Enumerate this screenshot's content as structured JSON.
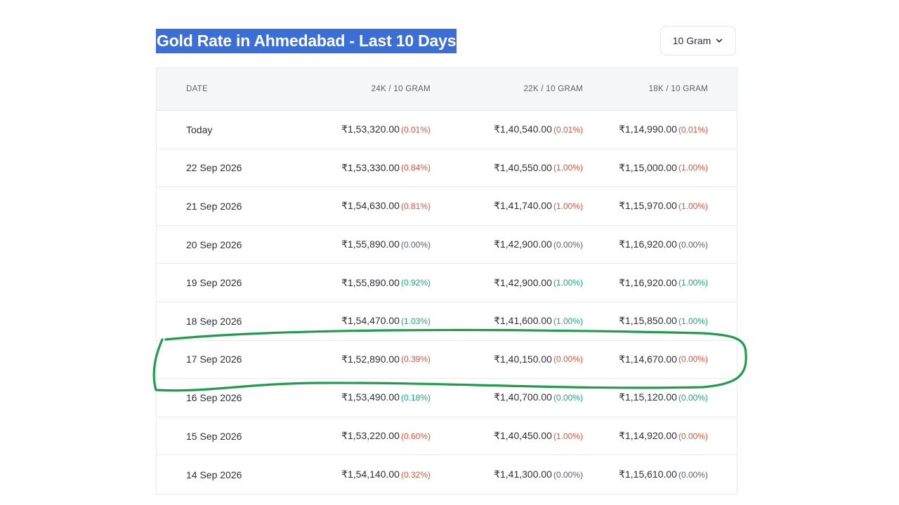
{
  "title": "Gold Rate in Ahmedabad - Last 10 Days",
  "unit_select": {
    "value": "10 Gram"
  },
  "table": {
    "headers": [
      "DATE",
      "24K / 10 GRAM",
      "22K / 10 GRAM",
      "18K / 10 GRAM"
    ],
    "rows": [
      {
        "date": "Today",
        "k24": {
          "price": "₹1,53,320.00",
          "change": "(0.01%)",
          "trend": "down"
        },
        "k22": {
          "price": "₹1,40,540.00",
          "change": "(0.01%)",
          "trend": "down"
        },
        "k18": {
          "price": "₹1,14,990.00",
          "change": "(0.01%)",
          "trend": "down"
        }
      },
      {
        "date": "22 Sep 2026",
        "k24": {
          "price": "₹1,53,330.00",
          "change": "(0.84%)",
          "trend": "down"
        },
        "k22": {
          "price": "₹1,40,550.00",
          "change": "(1.00%)",
          "trend": "down"
        },
        "k18": {
          "price": "₹1,15,000.00",
          "change": "(1.00%)",
          "trend": "down"
        }
      },
      {
        "date": "21 Sep 2026",
        "k24": {
          "price": "₹1,54,630.00",
          "change": "(0.81%)",
          "trend": "down"
        },
        "k22": {
          "price": "₹1,41,740.00",
          "change": "(1.00%)",
          "trend": "down"
        },
        "k18": {
          "price": "₹1,15,970.00",
          "change": "(1.00%)",
          "trend": "down"
        }
      },
      {
        "date": "20 Sep 2026",
        "k24": {
          "price": "₹1,55,890.00",
          "change": "(0.00%)",
          "trend": "flat"
        },
        "k22": {
          "price": "₹1,42,900.00",
          "change": "(0.00%)",
          "trend": "flat"
        },
        "k18": {
          "price": "₹1,16,920.00",
          "change": "(0.00%)",
          "trend": "flat"
        }
      },
      {
        "date": "19 Sep 2026",
        "k24": {
          "price": "₹1,55,890.00",
          "change": "(0.92%)",
          "trend": "up"
        },
        "k22": {
          "price": "₹1,42,900.00",
          "change": "(1.00%)",
          "trend": "up"
        },
        "k18": {
          "price": "₹1,16,920.00",
          "change": "(1.00%)",
          "trend": "up"
        }
      },
      {
        "date": "18 Sep 2026",
        "k24": {
          "price": "₹1,54,470.00",
          "change": "(1.03%)",
          "trend": "up"
        },
        "k22": {
          "price": "₹1,41,600.00",
          "change": "(1.00%)",
          "trend": "up"
        },
        "k18": {
          "price": "₹1,15,850.00",
          "change": "(1.00%)",
          "trend": "up"
        }
      },
      {
        "date": "17 Sep 2026",
        "k24": {
          "price": "₹1,52,890.00",
          "change": "(0.39%)",
          "trend": "down"
        },
        "k22": {
          "price": "₹1,40,150.00",
          "change": "(0.00%)",
          "trend": "down"
        },
        "k18": {
          "price": "₹1,14,670.00",
          "change": "(0.00%)",
          "trend": "down"
        }
      },
      {
        "date": "16 Sep 2026",
        "k24": {
          "price": "₹1,53,490.00",
          "change": "(0.18%)",
          "trend": "up"
        },
        "k22": {
          "price": "₹1,40,700.00",
          "change": "(0.00%)",
          "trend": "up"
        },
        "k18": {
          "price": "₹1,15,120.00",
          "change": "(0.00%)",
          "trend": "up"
        }
      },
      {
        "date": "15 Sep 2026",
        "k24": {
          "price": "₹1,53,220.00",
          "change": "(0.60%)",
          "trend": "down"
        },
        "k22": {
          "price": "₹1,40,450.00",
          "change": "(1.00%)",
          "trend": "down"
        },
        "k18": {
          "price": "₹1,14,920.00",
          "change": "(0.00%)",
          "trend": "down"
        }
      },
      {
        "date": "14 Sep 2026",
        "k24": {
          "price": "₹1,54,140.00",
          "change": "(0.32%)",
          "trend": "down"
        },
        "k22": {
          "price": "₹1,41,300.00",
          "change": "(0.00%)",
          "trend": "flat"
        },
        "k18": {
          "price": "₹1,15,610.00",
          "change": "(0.00%)",
          "trend": "flat"
        }
      }
    ]
  },
  "highlight": {
    "row_date": "17 Sep 2026",
    "color": "#1f9d4a"
  },
  "colors": {
    "title_bg": "#3b6fd6",
    "down": "#e0533a",
    "up": "#1ea67a",
    "flat": "#5b616b"
  },
  "icons": {
    "dropdown": "chevron-down-icon"
  }
}
